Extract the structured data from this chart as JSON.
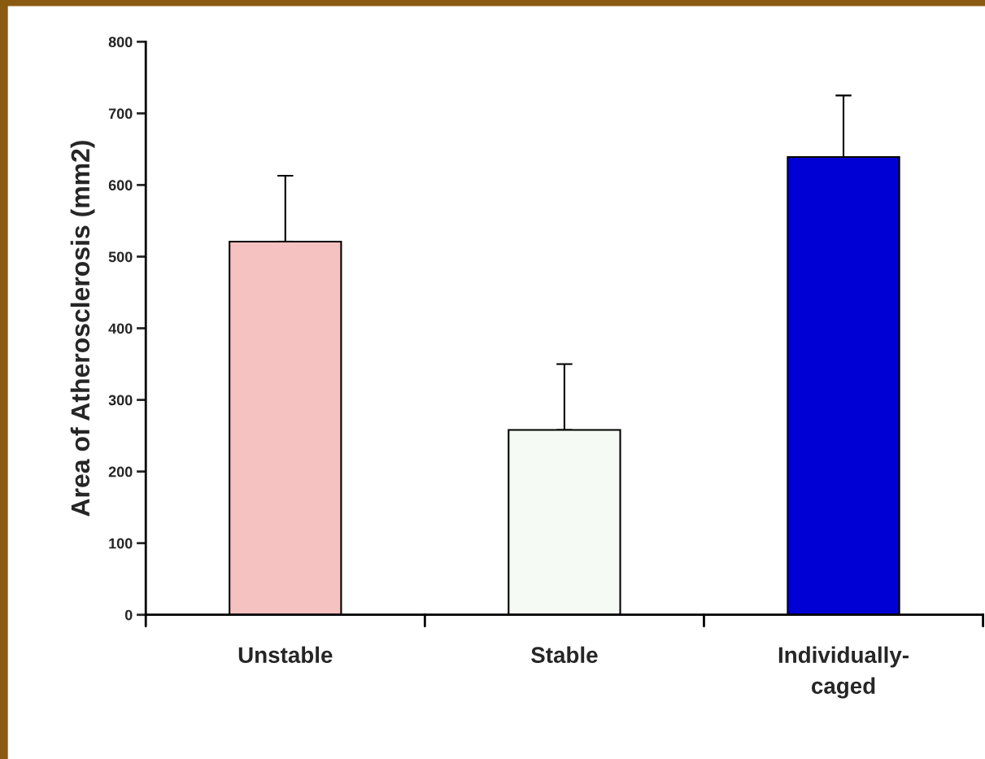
{
  "chart_data": {
    "type": "bar",
    "ylabel": "Area of Atherosclerosis (mm2)",
    "categories": [
      "Unstable",
      "Stable",
      "Individually-\ncaged"
    ],
    "values": [
      521,
      258,
      639
    ],
    "colors": [
      "#f6c1c1",
      "#f5faf4",
      "#0000d4"
    ],
    "errors": [
      [
        521,
        613
      ],
      [
        258,
        350
      ],
      [
        639,
        725
      ]
    ],
    "ylim": [
      0,
      800
    ],
    "yticks": [
      0,
      100,
      200,
      300,
      400,
      500,
      600,
      700,
      800
    ],
    "grid": false
  }
}
